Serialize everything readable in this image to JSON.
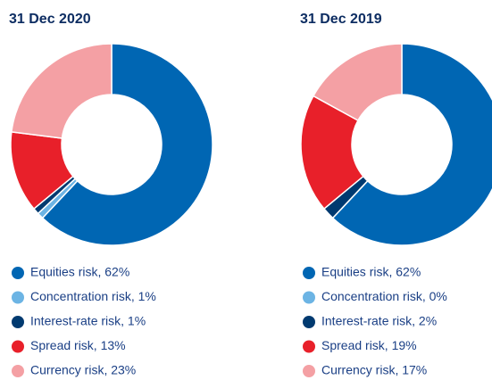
{
  "chart_data": [
    {
      "type": "pie",
      "donut": true,
      "title": "31 Dec 2020",
      "values": [
        62,
        1,
        1,
        13,
        23
      ],
      "value_labels": [
        "Equities risk, 62%",
        "Concentration risk, 1%",
        "Interest-rate risk, 1%",
        "Spread risk, 13%",
        "Currency risk, 23%"
      ],
      "colors": [
        "#0066b3",
        "#6cb4e4",
        "#003a70",
        "#e8202a",
        "#f4a0a4"
      ]
    },
    {
      "type": "pie",
      "donut": true,
      "title": "31 Dec 2019",
      "values": [
        62,
        0,
        2,
        19,
        17
      ],
      "value_labels": [
        "Equities risk, 62%",
        "Concentration risk, 0%",
        "Interest-rate risk, 2%",
        "Spread risk, 19%",
        "Currency risk, 17%"
      ],
      "colors": [
        "#0066b3",
        "#6cb4e4",
        "#003a70",
        "#e8202a",
        "#f4a0a4"
      ]
    }
  ]
}
